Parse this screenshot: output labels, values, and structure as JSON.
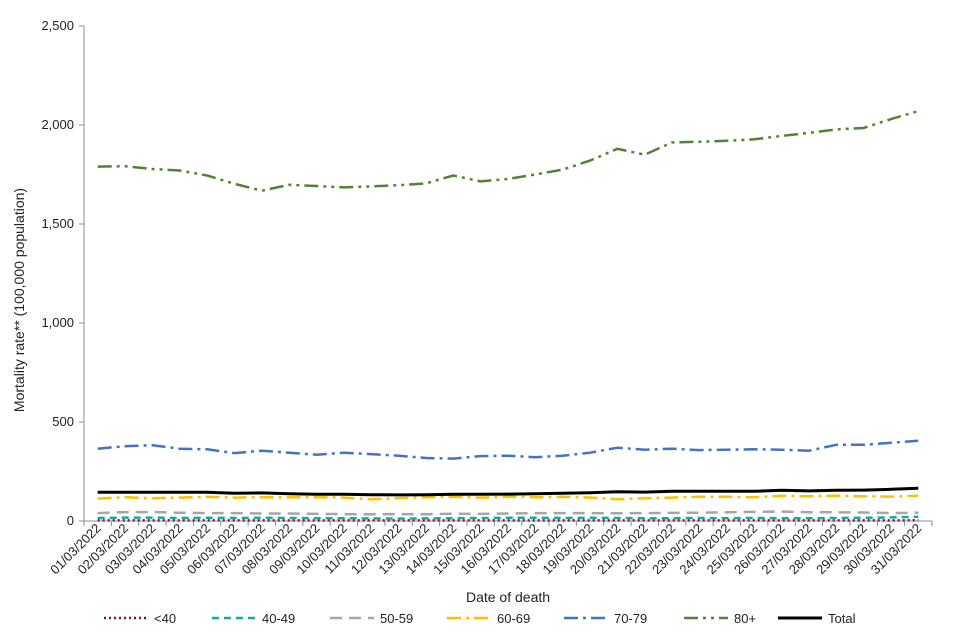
{
  "chart_data": {
    "type": "line",
    "title": "",
    "xlabel": "Date of death",
    "ylabel": "Mortality rate** (100,000 population)",
    "ylim": [
      0,
      2500
    ],
    "yticks": [
      0,
      500,
      1000,
      1500,
      2000,
      2500
    ],
    "ytick_labels": [
      "0",
      "500",
      "1,000",
      "1,500",
      "2,000",
      "2,500"
    ],
    "grid": false,
    "legend_position": "bottom",
    "categories": [
      "01/03/2022",
      "02/03/2022",
      "03/03/2022",
      "04/03/2022",
      "05/03/2022",
      "06/03/2022",
      "07/03/2022",
      "08/03/2022",
      "09/03/2022",
      "10/03/2022",
      "11/03/2022",
      "12/03/2022",
      "13/03/2022",
      "14/03/2022",
      "15/03/2022",
      "16/03/2022",
      "17/03/2022",
      "18/03/2022",
      "19/03/2022",
      "20/03/2022",
      "21/03/2022",
      "22/03/2022",
      "23/03/2022",
      "24/03/2022",
      "25/03/2022",
      "26/03/2022",
      "27/03/2022",
      "28/03/2022",
      "29/03/2022",
      "30/03/2022",
      "31/03/2022"
    ],
    "series": [
      {
        "name": "<40",
        "color": "#8b0a3a",
        "style": "dotted",
        "values": [
          3,
          3,
          3,
          3,
          3,
          3,
          3,
          3,
          3,
          3,
          3,
          3,
          3,
          3,
          3,
          3,
          3,
          3,
          3,
          3,
          3,
          3,
          3,
          3,
          3,
          3,
          3,
          3,
          3,
          3,
          4
        ]
      },
      {
        "name": "40-49",
        "color": "#17a99a",
        "style": "dashed",
        "values": [
          15,
          17,
          17,
          15,
          16,
          15,
          16,
          15,
          14,
          14,
          13,
          12,
          13,
          14,
          15,
          16,
          16,
          15,
          16,
          15,
          14,
          14,
          15,
          14,
          15,
          14,
          14,
          15,
          16,
          18,
          21
        ]
      },
      {
        "name": "50-59",
        "color": "#a6a6a6",
        "style": "longdash",
        "values": [
          40,
          45,
          45,
          42,
          40,
          40,
          38,
          38,
          36,
          35,
          34,
          35,
          34,
          37,
          36,
          38,
          40,
          40,
          40,
          39,
          40,
          41,
          42,
          44,
          46,
          48,
          44,
          44,
          43,
          40,
          42
        ]
      },
      {
        "name": "60-69",
        "color": "#ffc000",
        "style": "dashdot",
        "values": [
          113,
          120,
          115,
          118,
          122,
          118,
          120,
          120,
          120,
          118,
          110,
          115,
          120,
          122,
          118,
          122,
          120,
          122,
          118,
          110,
          115,
          118,
          122,
          122,
          120,
          128,
          125,
          128,
          125,
          123,
          128
        ]
      },
      {
        "name": "70-79",
        "color": "#4472c4",
        "style": "dashdot",
        "values": [
          365,
          378,
          383,
          365,
          362,
          343,
          355,
          345,
          335,
          345,
          338,
          330,
          318,
          315,
          328,
          330,
          322,
          330,
          345,
          370,
          360,
          365,
          358,
          360,
          362,
          360,
          355,
          385,
          385,
          395,
          405
        ]
      },
      {
        "name": "80+",
        "color": "#548235",
        "style": "dashdotdot",
        "values": [
          1790,
          1792,
          1778,
          1770,
          1745,
          1703,
          1668,
          1698,
          1692,
          1685,
          1690,
          1696,
          1705,
          1745,
          1715,
          1728,
          1750,
          1775,
          1820,
          1880,
          1850,
          1912,
          1915,
          1920,
          1928,
          1945,
          1960,
          1978,
          1985,
          2030,
          2070
        ]
      },
      {
        "name": "Total",
        "color": "#000000",
        "style": "solid",
        "values": [
          145,
          145,
          145,
          145,
          145,
          140,
          142,
          138,
          135,
          135,
          133,
          132,
          133,
          135,
          135,
          136,
          138,
          140,
          143,
          148,
          146,
          150,
          150,
          150,
          150,
          155,
          152,
          155,
          156,
          160,
          165
        ]
      }
    ]
  }
}
